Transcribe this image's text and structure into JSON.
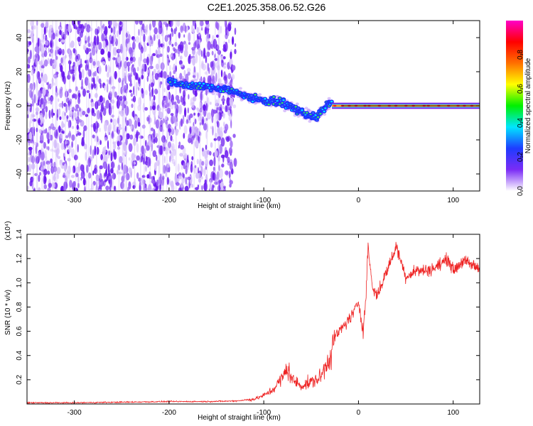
{
  "title": "C2E1.2025.358.06.52.G26",
  "chart_data": [
    {
      "type": "heatmap",
      "xlabel": "Height of straight line (km)",
      "ylabel": "Frequency (Hz)",
      "xlim": [
        -350,
        128
      ],
      "ylim": [
        -50,
        50
      ],
      "xticks": [
        -300,
        -200,
        -100,
        0,
        100
      ],
      "yticks": [
        -40,
        -20,
        0,
        20,
        40
      ],
      "colorbar": {
        "label": "Normalized spectral amplitude",
        "range": [
          0,
          1
        ],
        "ticks": [
          "0.0",
          "0.2",
          "0.4",
          "0.6",
          "0.8"
        ],
        "colors": [
          "#ffffff",
          "#7b2cf6",
          "#1e3cff",
          "#00e6ff",
          "#00f000",
          "#ffff00",
          "#ff7000",
          "#ff0000",
          "#ff00c8"
        ]
      },
      "ridge": {
        "description_points_x": [
          -200,
          -180,
          -160,
          -140,
          -120,
          -100,
          -80,
          -60,
          -45,
          -30,
          -15,
          0,
          50,
          128
        ],
        "description_points_y": [
          14,
          12,
          11,
          10,
          6,
          3,
          2,
          -4,
          -7,
          2,
          2,
          0,
          0,
          0
        ]
      },
      "noise_extent_x": [
        -350,
        -130
      ]
    },
    {
      "type": "line",
      "xlabel": "Height of straight line (km)",
      "ylabel": "SNR (10 * v/v)",
      "yscale_note": "(x10⁴)",
      "xlim": [
        -350,
        128
      ],
      "ylim": [
        0,
        1.4
      ],
      "xticks": [
        -300,
        -200,
        -100,
        0,
        100
      ],
      "yticks": [
        0.2,
        0.4,
        0.6,
        0.8,
        1.0,
        1.2,
        1.4
      ],
      "series": [
        {
          "color": "#ee2222",
          "x": [
            -350,
            -300,
            -250,
            -200,
            -160,
            -130,
            -110,
            -100,
            -90,
            -80,
            -75,
            -70,
            -60,
            -50,
            -40,
            -30,
            -25,
            -20,
            -15,
            -10,
            -5,
            0,
            5,
            8,
            10,
            15,
            20,
            30,
            40,
            50,
            60,
            70,
            80,
            95,
            100,
            110,
            128
          ],
          "y": [
            0.01,
            0.01,
            0.015,
            0.02,
            0.02,
            0.025,
            0.04,
            0.07,
            0.12,
            0.22,
            0.3,
            0.2,
            0.15,
            0.18,
            0.22,
            0.4,
            0.55,
            0.6,
            0.65,
            0.7,
            0.75,
            0.85,
            0.6,
            0.9,
            1.3,
            0.95,
            0.9,
            1.1,
            1.3,
            1.05,
            1.1,
            1.1,
            1.12,
            1.2,
            1.1,
            1.18,
            1.12
          ]
        }
      ]
    }
  ]
}
